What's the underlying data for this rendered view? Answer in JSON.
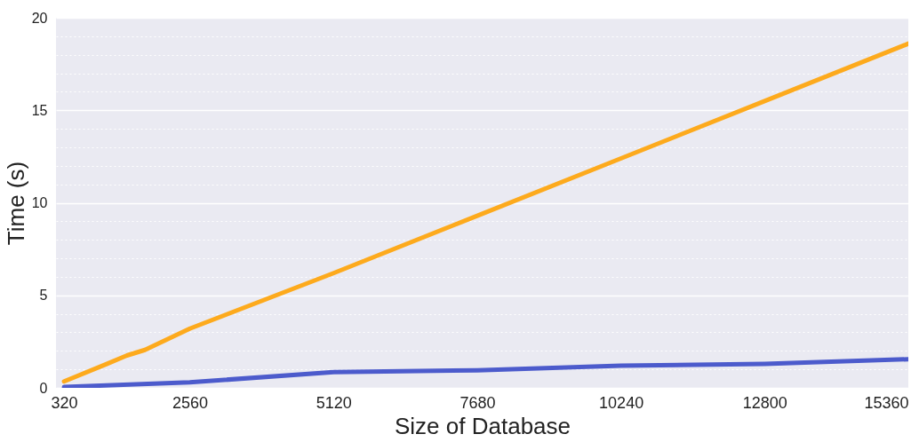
{
  "chart_data": {
    "type": "line",
    "xlabel": "Size of Database",
    "ylabel": "Time (s)",
    "xlim": [
      176,
      15360
    ],
    "xticks": [
      320,
      2560,
      5120,
      7680,
      10240,
      12800,
      15360
    ],
    "ylim": [
      0,
      20
    ],
    "yticks": [
      0,
      {
        "value": 1,
        "label": null
      },
      {
        "value": 2,
        "label": null
      },
      {
        "value": 3,
        "label": null
      },
      {
        "value": 4,
        "label": null
      },
      5,
      {
        "value": 6,
        "label": null
      },
      {
        "value": 7,
        "label": null
      },
      {
        "value": 8,
        "label": null
      },
      {
        "value": 9,
        "label": null
      },
      10,
      {
        "value": 11,
        "label": null
      },
      {
        "value": 12,
        "label": null
      },
      {
        "value": 13,
        "label": null
      },
      {
        "value": 14,
        "label": null
      },
      15,
      {
        "value": 16,
        "label": null
      },
      {
        "value": 17,
        "label": null
      },
      {
        "value": 18,
        "label": null
      },
      {
        "value": 19,
        "label": null
      },
      20
    ],
    "grid": "y",
    "marker": "none",
    "line_style": "solid",
    "series": [
      {
        "color": "#fdaa1d",
        "x": [
          320,
          1088,
          1440,
          1760,
          2560,
          5120,
          7680,
          10240,
          12800,
          15360
        ],
        "values": [
          0.35,
          1.3,
          1.75,
          2.05,
          3.2,
          6.2,
          9.3,
          12.4,
          15.5,
          18.6
        ]
      },
      {
        "color": "#4c5bcc",
        "x": [
          320,
          2560,
          5120,
          7680,
          10240,
          12800,
          15360
        ],
        "values": [
          0.05,
          0.3,
          0.85,
          0.95,
          1.2,
          1.3,
          1.55
        ]
      }
    ]
  }
}
